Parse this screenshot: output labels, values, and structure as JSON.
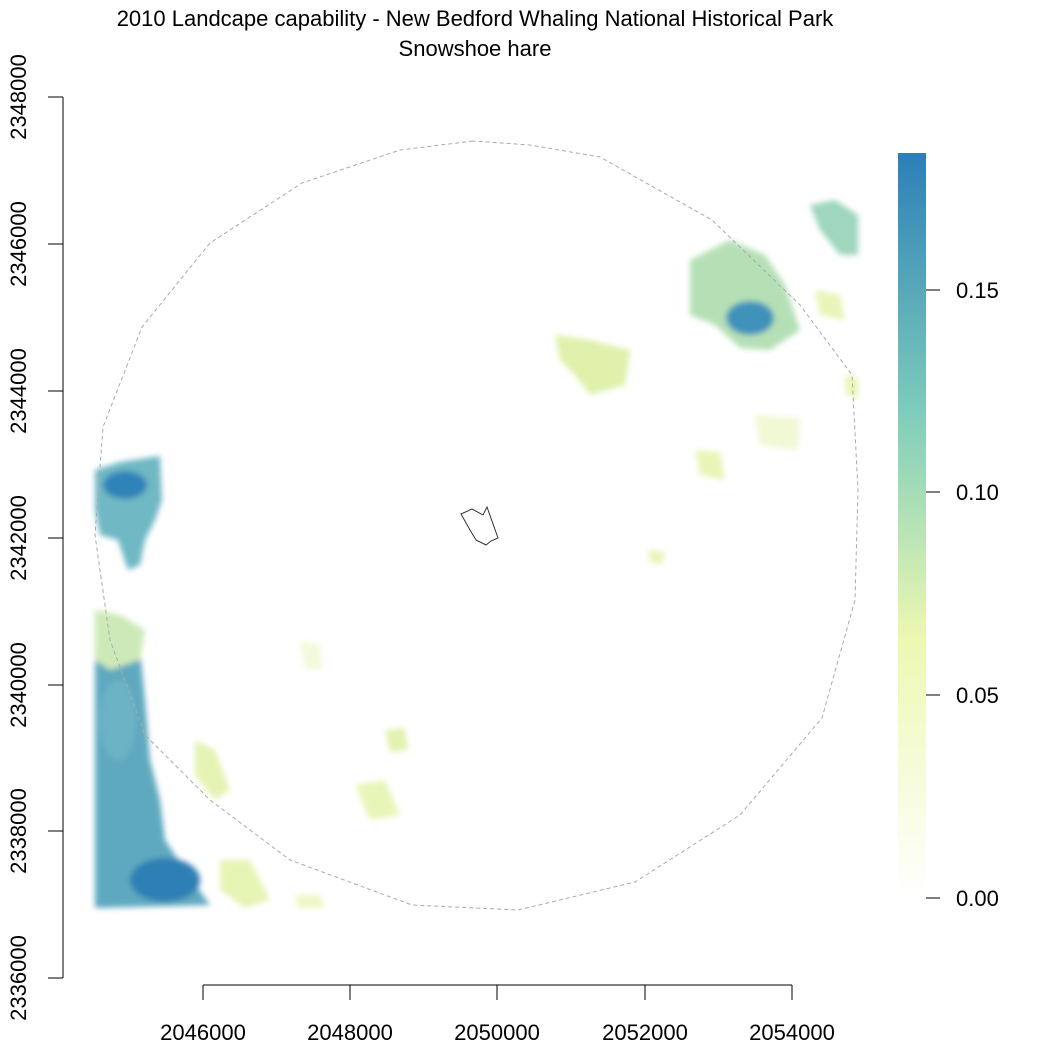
{
  "title": "2010 Landcape capability - New Bedford Whaling National Historical Park",
  "subtitle": "Snowshoe hare",
  "x_axis": {
    "ticks": [
      "2046000",
      "2048000",
      "2050000",
      "2052000",
      "2054000"
    ]
  },
  "y_axis": {
    "ticks": [
      "2336000",
      "2338000",
      "2340000",
      "2342000",
      "2344000",
      "2346000",
      "2348000"
    ]
  },
  "legend": {
    "ticks": [
      "0.00",
      "0.05",
      "0.10",
      "0.15"
    ],
    "color_scale": [
      "#ffffff",
      "#edf8b1",
      "#7fcdbb",
      "#2c7fb8"
    ]
  },
  "colors": {
    "buffer_outline": "#aaaaaa",
    "park_outline": "#333333"
  }
}
